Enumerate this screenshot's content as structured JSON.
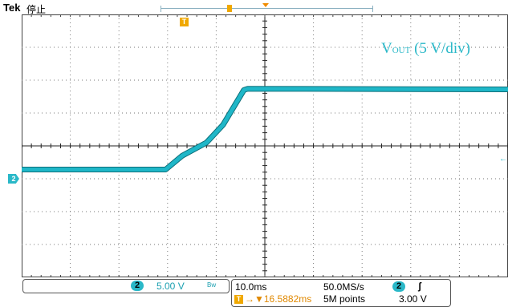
{
  "header": {
    "brand": "Tek",
    "run_status": "停止"
  },
  "trace_label": {
    "main": "V",
    "sub": "OUT",
    "scale": " (5 V/div)"
  },
  "markers": {
    "trigger_glyph": "T",
    "channel_number": "2",
    "trigger_level_glyph": "←"
  },
  "channel_readout": {
    "channel": "2",
    "scale": "5.00 V",
    "bandwidth": "Bw"
  },
  "acquisition": {
    "timebase": "10.0ms",
    "sample_rate": "50.0MS/s",
    "trigger_source": "2",
    "trigger_slope_glyph": "ʃ",
    "trigger_glyph": "T",
    "horizontal_position": "→▼16.5882ms",
    "record_length": "5M points",
    "trigger_level": "3.00 V"
  },
  "colors": {
    "trace": "#1fb7c8",
    "trigger": "#f0a800",
    "grid": "#000000"
  },
  "chart_data": {
    "type": "line",
    "x_unit": "ms",
    "y_unit": "V",
    "xlim": [
      -50,
      50
    ],
    "ylim": [
      -20,
      20
    ],
    "grid_divisions": [
      10,
      8
    ],
    "series": [
      {
        "x": [
          -50,
          -20.4,
          -17,
          -12,
          -8.6,
          -4.3,
          -3.5,
          50
        ],
        "y": [
          -3.6,
          -3.6,
          -1.5,
          0.5,
          3.2,
          8.5,
          8.7,
          8.6
        ]
      }
    ]
  }
}
